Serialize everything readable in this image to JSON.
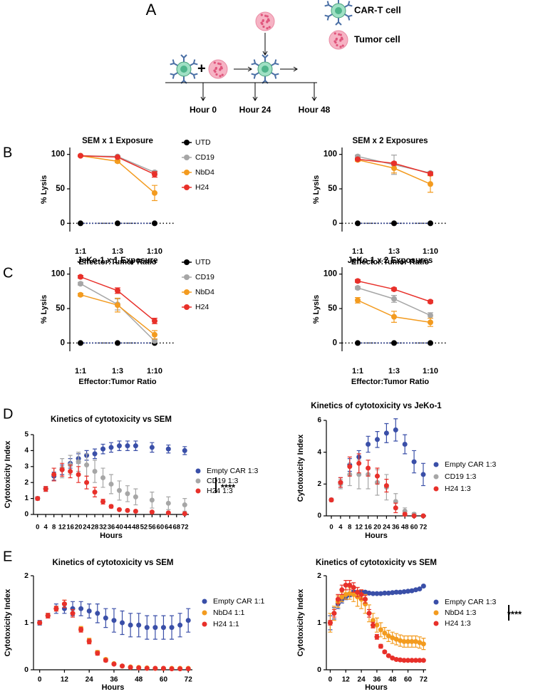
{
  "diagram": {
    "panel": "A",
    "legend": [
      "CAR-T cell",
      "Tumor cell"
    ],
    "timepoints": [
      "Hour 0",
      "Hour 24",
      "Hour 48"
    ]
  },
  "panel_labels": [
    "B",
    "C",
    "D",
    "E"
  ],
  "chart_data": [
    {
      "type": "line",
      "title": "SEM x 1 Exposure",
      "ylabel": "% Lysis",
      "xlabel": "Effector:Tumor Ratio",
      "categories": [
        "1:1",
        "1:3",
        "1:10"
      ],
      "ylim": [
        -12,
        110
      ],
      "yticks": [
        0,
        50,
        100
      ],
      "hline": 0,
      "legend": true,
      "series": [
        {
          "name": "UTD",
          "color": "#000000",
          "values": [
            0,
            0,
            0
          ]
        },
        {
          "name": "CD19",
          "color": "#a6a6a6",
          "values": [
            98,
            97,
            74
          ],
          "errors": [
            1,
            1,
            2
          ]
        },
        {
          "name": "NbD4",
          "color": "#f39b1f",
          "values": [
            98,
            90,
            44
          ],
          "errors": [
            1,
            2,
            11
          ]
        },
        {
          "name": "H24",
          "color": "#e8302a",
          "values": [
            98,
            96,
            71
          ],
          "errors": [
            1,
            1,
            4
          ]
        }
      ]
    },
    {
      "type": "line",
      "title": "SEM x 2 Exposures",
      "ylabel": "% Lysis",
      "xlabel": "Effector:Tumor Ratio",
      "categories": [
        "1:1",
        "1:3",
        "1:10"
      ],
      "ylim": [
        -12,
        110
      ],
      "yticks": [
        0,
        50,
        100
      ],
      "hline": 0,
      "legend": false,
      "series": [
        {
          "name": "UTD",
          "color": "#000000",
          "values": [
            0,
            0,
            0
          ]
        },
        {
          "name": "CD19",
          "color": "#a6a6a6",
          "values": [
            97,
            85,
            73
          ],
          "errors": [
            2,
            14,
            2
          ]
        },
        {
          "name": "NbD4",
          "color": "#f39b1f",
          "values": [
            92,
            80,
            57
          ],
          "errors": [
            2,
            7,
            12
          ]
        },
        {
          "name": "H24",
          "color": "#e8302a",
          "values": [
            93,
            87,
            72
          ],
          "errors": [
            1,
            2,
            2
          ]
        }
      ]
    },
    {
      "type": "line",
      "title": "JeKo-1 x 1 Exposure",
      "ylabel": "% Lysis",
      "xlabel": "Effector:Tumor Ratio",
      "categories": [
        "1:1",
        "1:3",
        "1:10"
      ],
      "ylim": [
        -12,
        110
      ],
      "yticks": [
        0,
        50,
        100
      ],
      "hline": 0,
      "legend": true,
      "series": [
        {
          "name": "UTD",
          "color": "#000000",
          "values": [
            0,
            0,
            0
          ]
        },
        {
          "name": "CD19",
          "color": "#a6a6a6",
          "values": [
            86,
            56,
            3
          ],
          "errors": [
            2,
            8,
            2
          ]
        },
        {
          "name": "NbD4",
          "color": "#f39b1f",
          "values": [
            70,
            55,
            12
          ],
          "errors": [
            2,
            10,
            6
          ]
        },
        {
          "name": "H24",
          "color": "#e8302a",
          "values": [
            96,
            76,
            32
          ],
          "errors": [
            2,
            4,
            4
          ]
        }
      ]
    },
    {
      "type": "line",
      "title": "JeKo-1 x 2 Exposures",
      "ylabel": "% Lysis",
      "xlabel": "Effector:Tumor Ratio",
      "categories": [
        "1:1",
        "1:3",
        "1:10"
      ],
      "ylim": [
        -12,
        110
      ],
      "yticks": [
        0,
        50,
        100
      ],
      "hline": 0,
      "legend": false,
      "series": [
        {
          "name": "UTD",
          "color": "#000000",
          "values": [
            0,
            0,
            0
          ]
        },
        {
          "name": "CD19",
          "color": "#a6a6a6",
          "values": [
            80,
            64,
            40
          ],
          "errors": [
            2,
            5,
            4
          ]
        },
        {
          "name": "NbD4",
          "color": "#f39b1f",
          "values": [
            62,
            38,
            30
          ],
          "errors": [
            4,
            8,
            6
          ]
        },
        {
          "name": "H24",
          "color": "#e8302a",
          "values": [
            90,
            78,
            60
          ],
          "errors": [
            2,
            2,
            2
          ]
        }
      ]
    },
    {
      "type": "scatter",
      "title": "Kinetics of cytotoxicity vs SEM",
      "ylabel": "Cytotoxicity Index",
      "xlabel": "Hours",
      "x": [
        0,
        4,
        8,
        12,
        16,
        20,
        24,
        28,
        32,
        36,
        40,
        44,
        48,
        56,
        64,
        72
      ],
      "xlim": [
        -2,
        74
      ],
      "xticks": [
        0,
        4,
        8,
        12,
        16,
        20,
        24,
        28,
        32,
        36,
        40,
        44,
        48,
        52,
        56,
        60,
        64,
        68,
        72
      ],
      "ylim": [
        0,
        5
      ],
      "yticks": [
        0,
        1,
        2,
        3,
        4,
        5
      ],
      "legend": true,
      "annotation": "****",
      "series": [
        {
          "name": "Empty CAR 1:3",
          "color": "#3a4fa8",
          "values": [
            1.0,
            1.6,
            2.4,
            2.8,
            3.2,
            3.5,
            3.7,
            3.8,
            4.1,
            4.2,
            4.3,
            4.3,
            4.3,
            4.2,
            4.1,
            4.0
          ],
          "errors": [
            0.1,
            0.15,
            0.25,
            0.3,
            0.3,
            0.3,
            0.3,
            0.3,
            0.3,
            0.3,
            0.3,
            0.3,
            0.3,
            0.3,
            0.25,
            0.25
          ]
        },
        {
          "name": "CD19 1:3",
          "color": "#a6a6a6",
          "values": [
            1.0,
            1.6,
            2.5,
            2.9,
            3.1,
            3.3,
            3.1,
            2.7,
            2.3,
            1.9,
            1.5,
            1.3,
            1.1,
            0.9,
            0.7,
            0.6
          ],
          "errors": [
            0.1,
            0.15,
            0.4,
            0.6,
            0.6,
            0.6,
            0.7,
            0.7,
            0.6,
            0.6,
            0.6,
            0.5,
            0.5,
            0.5,
            0.4,
            0.4
          ]
        },
        {
          "name": "H24 1:3",
          "color": "#e8302a",
          "values": [
            1.0,
            1.6,
            2.5,
            2.8,
            2.7,
            2.5,
            2.0,
            1.4,
            0.8,
            0.5,
            0.3,
            0.25,
            0.2,
            0.15,
            0.1,
            0.05
          ],
          "errors": [
            0.1,
            0.15,
            0.4,
            0.4,
            0.4,
            0.5,
            0.4,
            0.3,
            0.15,
            0.1,
            0.05,
            0.05,
            0.05,
            0.05,
            0.05,
            0.05
          ]
        }
      ]
    },
    {
      "type": "scatter",
      "title": "Kinetics of cytotoxicity vs JeKo-1",
      "ylabel": "Cytotoxicity Index",
      "xlabel": "Hours",
      "categories": [
        "0",
        "4",
        "8",
        "12",
        "16",
        "20",
        "24",
        "36",
        "48",
        "60",
        "72"
      ],
      "ylim": [
        0,
        6
      ],
      "yticks": [
        0,
        2,
        4,
        6
      ],
      "legend": true,
      "series": [
        {
          "name": "Empty CAR 1:3",
          "color": "#3a4fa8",
          "values": [
            1.0,
            2.1,
            3.2,
            3.7,
            4.5,
            4.8,
            5.2,
            5.4,
            4.5,
            3.4,
            2.6
          ],
          "errors": [
            0.1,
            0.3,
            0.4,
            0.4,
            0.5,
            0.5,
            0.6,
            0.7,
            0.6,
            0.7,
            0.7
          ]
        },
        {
          "name": "CD19 1:3",
          "color": "#a6a6a6",
          "values": [
            1.0,
            2.0,
            2.6,
            2.6,
            2.6,
            2.1,
            1.8,
            0.9,
            0.3,
            0.1,
            0.0
          ],
          "errors": [
            0.1,
            0.3,
            0.7,
            0.9,
            0.9,
            0.8,
            0.8,
            0.5,
            0.2,
            0.1,
            0.05
          ]
        },
        {
          "name": "H24 1:3",
          "color": "#e8302a",
          "values": [
            1.0,
            2.1,
            3.1,
            3.3,
            3.0,
            2.5,
            1.9,
            0.5,
            0.1,
            0.0,
            0.0
          ],
          "errors": [
            0.1,
            0.3,
            0.6,
            0.6,
            0.5,
            0.5,
            0.4,
            0.3,
            0.1,
            0.05,
            0.05
          ]
        }
      ]
    },
    {
      "type": "scatter",
      "title": "Kinetics of cytotoxicity vs SEM",
      "ylabel": "Cytotoxicity Index",
      "xlabel": "Hours",
      "x": [
        0,
        4,
        8,
        12,
        16,
        20,
        24,
        28,
        32,
        36,
        40,
        44,
        48,
        52,
        56,
        60,
        64,
        68,
        72
      ],
      "xlim": [
        -3,
        74
      ],
      "xticks": [
        0,
        12,
        24,
        36,
        48,
        60,
        72
      ],
      "ylim": [
        0,
        2
      ],
      "yticks": [
        0,
        1,
        2
      ],
      "legend": true,
      "series": [
        {
          "name": "Empty CAR 1:1",
          "color": "#3a4fa8",
          "values": [
            1.0,
            1.15,
            1.3,
            1.3,
            1.3,
            1.3,
            1.25,
            1.2,
            1.1,
            1.05,
            1.0,
            0.95,
            0.95,
            0.9,
            0.9,
            0.9,
            0.9,
            0.95,
            1.05
          ],
          "errors": [
            0.05,
            0.05,
            0.1,
            0.1,
            0.15,
            0.15,
            0.15,
            0.2,
            0.2,
            0.25,
            0.25,
            0.25,
            0.25,
            0.25,
            0.25,
            0.25,
            0.25,
            0.25,
            0.25
          ]
        },
        {
          "name": "NbD4 1:1",
          "color": "#f39b1f",
          "values": [
            1.0,
            1.15,
            1.3,
            1.4,
            1.2,
            0.87,
            0.62,
            0.37,
            0.22,
            0.13,
            0.08,
            0.06,
            0.05,
            0.04,
            0.03,
            0.03,
            0.03,
            0.03,
            0.03
          ],
          "errors": [
            0.03,
            0.05,
            0.05,
            0.08,
            0.08,
            0.05,
            0.05,
            0.04,
            0.03,
            0.02,
            0.02,
            0.01,
            0.01,
            0.01,
            0.01,
            0.01,
            0.01,
            0.01,
            0.01
          ]
        },
        {
          "name": "H24 1:1",
          "color": "#e8302a",
          "values": [
            1.0,
            1.15,
            1.3,
            1.4,
            1.2,
            0.85,
            0.6,
            0.35,
            0.2,
            0.12,
            0.08,
            0.05,
            0.04,
            0.03,
            0.03,
            0.03,
            0.02,
            0.02,
            0.02
          ],
          "errors": [
            0.03,
            0.05,
            0.05,
            0.08,
            0.08,
            0.05,
            0.05,
            0.04,
            0.03,
            0.02,
            0.02,
            0.01,
            0.01,
            0.01,
            0.01,
            0.01,
            0.01,
            0.01,
            0.01
          ]
        }
      ]
    },
    {
      "type": "scatter",
      "title": "Kinetics of cytotoxicity vs SEM",
      "ylabel": "Cytotoxicity Index",
      "xlabel": "Hours",
      "x": [
        0,
        3,
        6,
        9,
        12,
        15,
        18,
        21,
        24,
        27,
        30,
        33,
        36,
        39,
        42,
        45,
        48,
        51,
        54,
        57,
        60,
        63,
        66,
        69,
        72
      ],
      "xlim": [
        -3,
        74
      ],
      "xticks": [
        0,
        12,
        24,
        36,
        48,
        60,
        72
      ],
      "ylim": [
        0,
        2
      ],
      "yticks": [
        0,
        1,
        2
      ],
      "legend": true,
      "annotation": "****",
      "series": [
        {
          "name": "Empty CAR 1:3",
          "color": "#3a4fa8",
          "values": [
            1.0,
            1.2,
            1.4,
            1.5,
            1.55,
            1.6,
            1.65,
            1.65,
            1.65,
            1.65,
            1.63,
            1.62,
            1.62,
            1.62,
            1.63,
            1.63,
            1.64,
            1.65,
            1.65,
            1.66,
            1.67,
            1.68,
            1.7,
            1.72,
            1.78
          ],
          "errors": [
            0.15,
            0.12,
            0.1,
            0.08,
            0.06,
            0.05,
            0.04,
            0.03,
            0.03,
            0.03,
            0.02,
            0.02,
            0.02,
            0.02,
            0.02,
            0.02,
            0.02,
            0.02,
            0.02,
            0.02,
            0.02,
            0.02,
            0.02,
            0.02,
            0.02
          ]
        },
        {
          "name": "NbD4 1:3",
          "color": "#f39b1f",
          "values": [
            1.0,
            1.2,
            1.45,
            1.55,
            1.6,
            1.62,
            1.6,
            1.55,
            1.5,
            1.4,
            1.2,
            1.05,
            0.95,
            0.85,
            0.78,
            0.72,
            0.68,
            0.65,
            0.62,
            0.6,
            0.6,
            0.6,
            0.6,
            0.58,
            0.55
          ],
          "errors": [
            0.2,
            0.15,
            0.12,
            0.1,
            0.1,
            0.12,
            0.15,
            0.2,
            0.2,
            0.2,
            0.18,
            0.15,
            0.15,
            0.15,
            0.12,
            0.12,
            0.12,
            0.12,
            0.12,
            0.12,
            0.12,
            0.12,
            0.12,
            0.12,
            0.12
          ]
        },
        {
          "name": "H24 1:3",
          "color": "#e8302a",
          "values": [
            1.0,
            1.2,
            1.5,
            1.7,
            1.8,
            1.8,
            1.75,
            1.65,
            1.6,
            1.5,
            1.2,
            0.95,
            0.7,
            0.5,
            0.38,
            0.3,
            0.25,
            0.22,
            0.21,
            0.2,
            0.2,
            0.2,
            0.2,
            0.2,
            0.2
          ],
          "errors": [
            0.05,
            0.08,
            0.1,
            0.1,
            0.1,
            0.1,
            0.1,
            0.1,
            0.1,
            0.08,
            0.08,
            0.06,
            0.05,
            0.04,
            0.03,
            0.02,
            0.02,
            0.02,
            0.02,
            0.02,
            0.02,
            0.02,
            0.02,
            0.02,
            0.02
          ]
        }
      ]
    }
  ]
}
